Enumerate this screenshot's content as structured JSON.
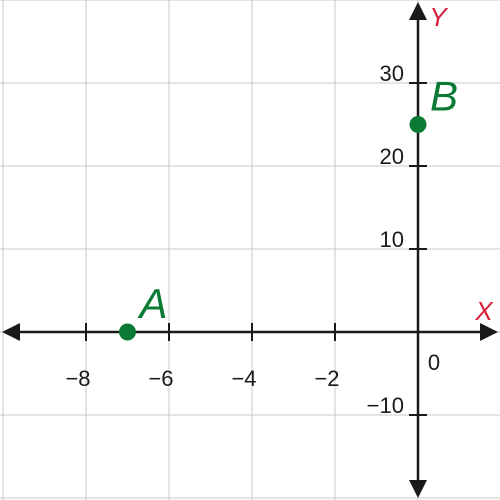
{
  "chart_data": {
    "type": "scatter",
    "title": "",
    "xlabel": "X",
    "ylabel": "Y",
    "xlim": [
      -10,
      2
    ],
    "ylim": [
      -20,
      40
    ],
    "grid": true,
    "legend": "none",
    "x_ticks": [
      -8,
      -6,
      -4,
      -2
    ],
    "y_ticks": [
      -10,
      10,
      20,
      30
    ],
    "x_tick_labels": [
      "−8",
      "−6",
      "−4",
      "−2"
    ],
    "y_tick_labels": [
      "−10",
      "10",
      "20",
      "30"
    ],
    "origin_label": "0",
    "points": [
      {
        "label": "A",
        "x": -7,
        "y": 0
      },
      {
        "label": "B",
        "x": 0,
        "y": 25
      }
    ]
  },
  "colors": {
    "point": "#0b7a34",
    "axis_name": "#d6203a",
    "axis": "#1a1a1a",
    "grid": "#c8c8c8"
  }
}
